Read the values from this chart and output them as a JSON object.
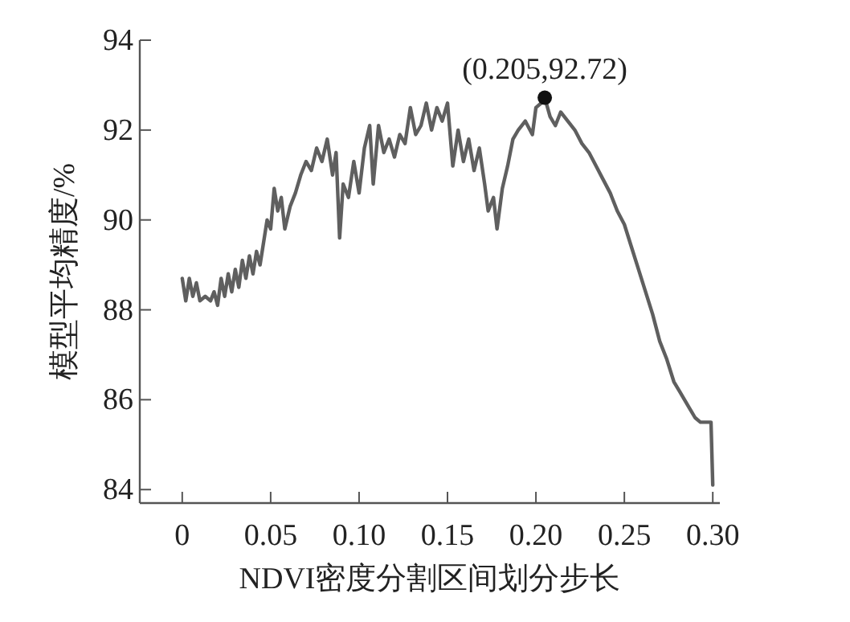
{
  "chart_data": {
    "type": "line",
    "xlabel": "NDVI密度分割区间划分步长",
    "ylabel": "模型平均精度/%",
    "xlim": [
      -0.024,
      0.304
    ],
    "ylim": [
      83.7,
      94
    ],
    "xticks": [
      {
        "value": 0,
        "label": "0"
      },
      {
        "value": 0.05,
        "label": "0.05"
      },
      {
        "value": 0.1,
        "label": "0.10"
      },
      {
        "value": 0.15,
        "label": "0.15"
      },
      {
        "value": 0.2,
        "label": "0.20"
      },
      {
        "value": 0.25,
        "label": "0.25"
      },
      {
        "value": 0.3,
        "label": "0.30"
      }
    ],
    "yticks": [
      84,
      86,
      88,
      90,
      92,
      94
    ],
    "marker": "none",
    "series": [
      {
        "color": "#5f5f5f",
        "x": [
          0,
          0.002,
          0.004,
          0.006,
          0.008,
          0.01,
          0.013,
          0.016,
          0.018,
          0.02,
          0.022,
          0.024,
          0.026,
          0.028,
          0.03,
          0.032,
          0.034,
          0.036,
          0.038,
          0.04,
          0.042,
          0.044,
          0.046,
          0.048,
          0.05,
          0.052,
          0.054,
          0.056,
          0.058,
          0.061,
          0.064,
          0.067,
          0.07,
          0.073,
          0.076,
          0.079,
          0.082,
          0.085,
          0.087,
          0.089,
          0.091,
          0.094,
          0.097,
          0.1,
          0.103,
          0.106,
          0.108,
          0.111,
          0.114,
          0.117,
          0.12,
          0.123,
          0.126,
          0.129,
          0.132,
          0.135,
          0.138,
          0.141,
          0.144,
          0.147,
          0.15,
          0.153,
          0.156,
          0.159,
          0.162,
          0.165,
          0.168,
          0.171,
          0.173,
          0.176,
          0.178,
          0.181,
          0.184,
          0.187,
          0.19,
          0.194,
          0.198,
          0.2,
          0.203,
          0.205,
          0.208,
          0.211,
          0.214,
          0.218,
          0.222,
          0.226,
          0.23,
          0.234,
          0.238,
          0.242,
          0.246,
          0.25,
          0.254,
          0.258,
          0.262,
          0.266,
          0.27,
          0.274,
          0.278,
          0.281,
          0.284,
          0.287,
          0.29,
          0.293,
          0.296,
          0.299,
          0.3
        ],
        "values": [
          88.7,
          88.2,
          88.7,
          88.3,
          88.6,
          88.2,
          88.3,
          88.2,
          88.4,
          88.1,
          88.7,
          88.3,
          88.8,
          88.4,
          88.9,
          88.5,
          89.1,
          88.7,
          89.2,
          88.8,
          89.3,
          89.0,
          89.5,
          90.0,
          89.8,
          90.7,
          90.2,
          90.5,
          89.8,
          90.3,
          90.6,
          91.0,
          91.3,
          91.1,
          91.6,
          91.3,
          91.8,
          91.0,
          91.5,
          89.6,
          90.8,
          90.5,
          91.3,
          90.6,
          91.6,
          92.1,
          90.8,
          92.1,
          91.5,
          91.8,
          91.4,
          91.9,
          91.7,
          92.5,
          91.9,
          92.1,
          92.6,
          92.0,
          92.5,
          92.2,
          92.6,
          91.2,
          92.0,
          91.3,
          91.8,
          91.1,
          91.6,
          90.8,
          90.2,
          90.5,
          89.8,
          90.7,
          91.2,
          91.8,
          92.0,
          92.2,
          91.9,
          92.5,
          92.6,
          92.72,
          92.3,
          92.1,
          92.4,
          92.2,
          92.0,
          91.7,
          91.5,
          91.2,
          90.9,
          90.6,
          90.2,
          89.9,
          89.4,
          88.9,
          88.4,
          87.9,
          87.3,
          86.9,
          86.4,
          86.2,
          86.0,
          85.8,
          85.6,
          85.5,
          85.5,
          85.5,
          84.1
        ]
      },
      {
        "type": "scatter",
        "color": "#111111",
        "marker": "circle",
        "x": [
          0.205
        ],
        "values": [
          92.72
        ]
      }
    ],
    "annotations": [
      {
        "text": "(0.205,92.72)",
        "x": 0.205,
        "y": 92.72
      }
    ]
  }
}
